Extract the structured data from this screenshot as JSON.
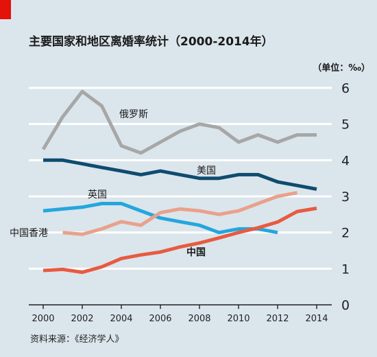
{
  "chart_data": {
    "type": "line",
    "title": "主要国家和地区离婚率统计（2000-2014年）",
    "unit": "（单位：‰）",
    "source": "资料来源：《经济学人》",
    "x_ticks": [
      "2000",
      "2002",
      "2004",
      "2006",
      "2008",
      "2010",
      "2012",
      "2014"
    ],
    "y_ticks": [
      "0",
      "1",
      "2",
      "3",
      "4",
      "5",
      "6"
    ],
    "xlim": [
      2000,
      2014
    ],
    "ylim": [
      0,
      6
    ],
    "grid": true,
    "series": [
      {
        "name": "俄罗斯",
        "color": "#a7a7a7",
        "x": [
          2000,
          2001,
          2002,
          2003,
          2004,
          2005,
          2006,
          2007,
          2008,
          2009,
          2010,
          2011,
          2012,
          2013,
          2014
        ],
        "values": [
          4.3,
          5.2,
          5.9,
          5.5,
          4.4,
          4.2,
          4.5,
          4.8,
          5.0,
          4.9,
          4.5,
          4.7,
          4.5,
          4.7,
          4.7
        ]
      },
      {
        "name": "美国",
        "color": "#0f4c6e",
        "x": [
          2000,
          2001,
          2002,
          2003,
          2004,
          2005,
          2006,
          2007,
          2008,
          2009,
          2010,
          2011,
          2012,
          2013,
          2014
        ],
        "values": [
          4.0,
          4.0,
          3.9,
          3.8,
          3.7,
          3.6,
          3.7,
          3.6,
          3.5,
          3.5,
          3.6,
          3.6,
          3.4,
          3.3,
          3.2
        ]
      },
      {
        "name": "英国",
        "color": "#24a6dd",
        "x": [
          2000,
          2001,
          2002,
          2003,
          2004,
          2005,
          2006,
          2007,
          2008,
          2009,
          2010,
          2011,
          2012
        ],
        "values": [
          2.6,
          2.65,
          2.7,
          2.8,
          2.8,
          2.6,
          2.4,
          2.3,
          2.2,
          2.0,
          2.1,
          2.1,
          2.0
        ]
      },
      {
        "name": "中国香港",
        "color": "#e9a18b",
        "x": [
          2001,
          2002,
          2003,
          2004,
          2005,
          2006,
          2007,
          2008,
          2009,
          2010,
          2011,
          2012,
          2013
        ],
        "values": [
          2.0,
          1.95,
          2.1,
          2.3,
          2.2,
          2.55,
          2.65,
          2.6,
          2.5,
          2.6,
          2.8,
          3.0,
          3.1
        ]
      },
      {
        "name": "中国",
        "color": "#e75b41",
        "x": [
          2000,
          2001,
          2002,
          2003,
          2004,
          2005,
          2006,
          2007,
          2008,
          2009,
          2010,
          2011,
          2012,
          2013,
          2014
        ],
        "values": [
          0.95,
          0.98,
          0.9,
          1.05,
          1.28,
          1.38,
          1.46,
          1.6,
          1.71,
          1.85,
          2.0,
          2.13,
          2.29,
          2.58,
          2.67
        ]
      }
    ]
  }
}
